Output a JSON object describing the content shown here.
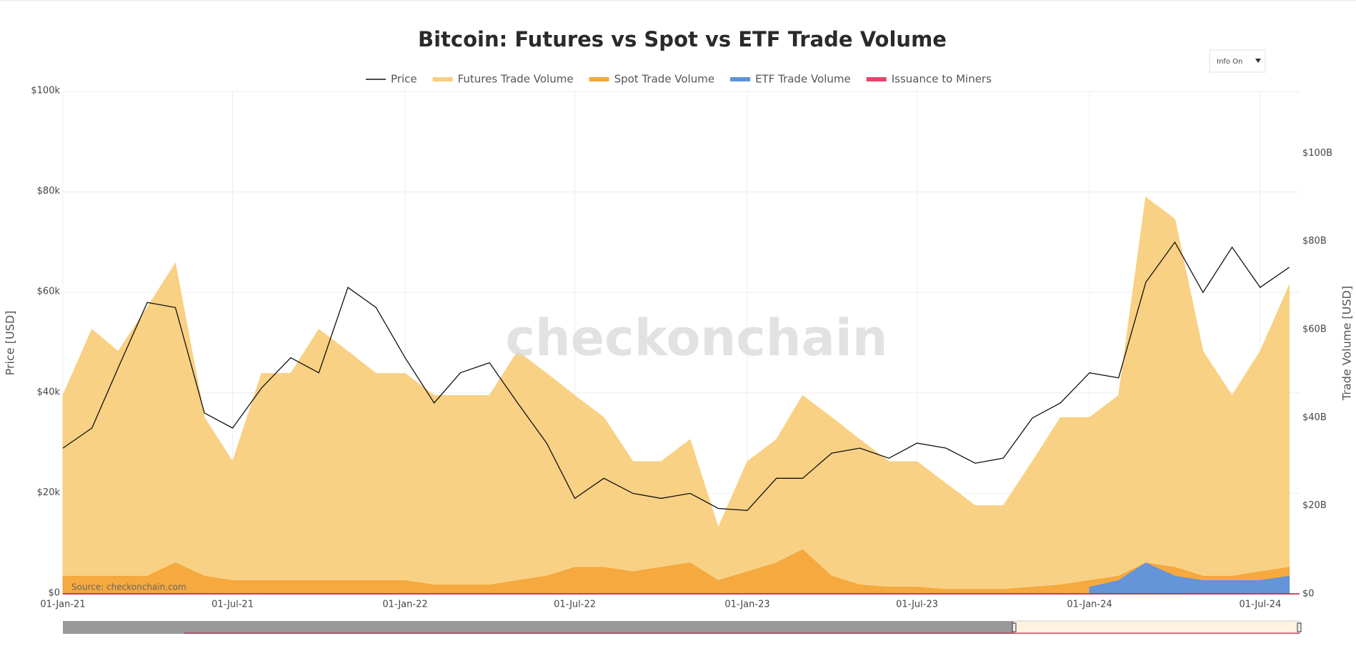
{
  "chart_data": {
    "type": "area",
    "title": "Bitcoin: Futures vs Spot vs ETF Trade Volume",
    "watermark": "checkonchain",
    "source": "Source: checkonchain.com",
    "info_button": "Info On",
    "y_label": "Price [USD]",
    "y2_label": "Trade Volume [USD]",
    "grid": true,
    "x": [
      "2021-01-01",
      "2021-02-01",
      "2021-03-01",
      "2021-04-01",
      "2021-05-01",
      "2021-06-01",
      "2021-07-01",
      "2021-08-01",
      "2021-09-01",
      "2021-10-01",
      "2021-11-01",
      "2021-12-01",
      "2022-01-01",
      "2022-02-01",
      "2022-03-01",
      "2022-04-01",
      "2022-05-01",
      "2022-06-01",
      "2022-07-01",
      "2022-08-01",
      "2022-09-01",
      "2022-10-01",
      "2022-11-01",
      "2022-12-01",
      "2023-01-01",
      "2023-02-01",
      "2023-03-01",
      "2023-04-01",
      "2023-05-01",
      "2023-06-01",
      "2023-07-01",
      "2023-08-01",
      "2023-09-01",
      "2023-10-01",
      "2023-11-01",
      "2023-12-01",
      "2024-01-01",
      "2024-02-01",
      "2024-03-01",
      "2024-04-01",
      "2024-05-01",
      "2024-06-01",
      "2024-07-01",
      "2024-08-01"
    ],
    "xlim": [
      "2021-01-01",
      "2024-08-12"
    ],
    "xticks": [
      {
        "value": "2021-01-01",
        "label": "01-Jan-21"
      },
      {
        "value": "2021-07-01",
        "label": "01-Jul-21"
      },
      {
        "value": "2022-01-01",
        "label": "01-Jan-22"
      },
      {
        "value": "2022-07-01",
        "label": "01-Jul-22"
      },
      {
        "value": "2023-01-01",
        "label": "01-Jan-23"
      },
      {
        "value": "2023-07-01",
        "label": "01-Jul-23"
      },
      {
        "value": "2024-01-01",
        "label": "01-Jan-24"
      },
      {
        "value": "2024-07-01",
        "label": "01-Jul-24"
      }
    ],
    "ylim": [
      0,
      100000
    ],
    "yticks": [
      {
        "value": 0,
        "label": "$0"
      },
      {
        "value": 20000,
        "label": "$20k"
      },
      {
        "value": 40000,
        "label": "$40k"
      },
      {
        "value": 60000,
        "label": "$60k"
      },
      {
        "value": 80000,
        "label": "$80k"
      },
      {
        "value": 100000,
        "label": "$100k"
      }
    ],
    "y2lim": [
      0,
      114000000000
    ],
    "y2ticks": [
      {
        "value": 0,
        "label": "$0"
      },
      {
        "value": 20000000000,
        "label": "$20B"
      },
      {
        "value": 40000000000,
        "label": "$40B"
      },
      {
        "value": 60000000000,
        "label": "$60B"
      },
      {
        "value": 80000000000,
        "label": "$80B"
      },
      {
        "value": 100000000000,
        "label": "$100B"
      }
    ],
    "series": [
      {
        "name": "Price",
        "type": "line",
        "color": "#111111",
        "values": [
          29000,
          33000,
          45000,
          58000,
          57000,
          36000,
          33000,
          41000,
          47000,
          44000,
          61000,
          57000,
          47000,
          38000,
          44000,
          46000,
          38000,
          30000,
          19000,
          23000,
          20000,
          19000,
          20000,
          17000,
          16600,
          23000,
          23000,
          28000,
          29000,
          27000,
          30000,
          29000,
          26000,
          27000,
          35000,
          38000,
          44000,
          43000,
          62000,
          70000,
          60000,
          69000,
          61000,
          65000
        ]
      },
      {
        "name": "Futures Trade Volume",
        "type": "area",
        "axis": "y2",
        "color": "#f9cf7d",
        "values": [
          45000000000,
          60000000000,
          55000000000,
          65000000000,
          75000000000,
          40000000000,
          30000000000,
          50000000000,
          50000000000,
          60000000000,
          55000000000,
          50000000000,
          50000000000,
          45000000000,
          45000000000,
          45000000000,
          55000000000,
          50000000000,
          45000000000,
          40000000000,
          30000000000,
          30000000000,
          35000000000,
          15000000000,
          30000000000,
          35000000000,
          45000000000,
          40000000000,
          35000000000,
          30000000000,
          30000000000,
          25000000000,
          20000000000,
          20000000000,
          30000000000,
          40000000000,
          40000000000,
          45000000000,
          90000000000,
          85000000000,
          55000000000,
          45000000000,
          55000000000,
          70000000000
        ]
      },
      {
        "name": "Spot Trade Volume",
        "type": "area",
        "axis": "y2",
        "color": "#f4a63a",
        "values": [
          4000000000,
          4000000000,
          4000000000,
          4000000000,
          7000000000,
          4000000000,
          3000000000,
          3000000000,
          3000000000,
          3000000000,
          3000000000,
          3000000000,
          3000000000,
          2000000000,
          2000000000,
          2000000000,
          3000000000,
          4000000000,
          6000000000,
          6000000000,
          5000000000,
          6000000000,
          7000000000,
          3000000000,
          5000000000,
          7000000000,
          10000000000,
          4000000000,
          2000000000,
          1500000000,
          1500000000,
          1000000000,
          1000000000,
          1000000000,
          1500000000,
          2000000000,
          3000000000,
          4000000000,
          7000000000,
          6000000000,
          4000000000,
          4000000000,
          5000000000,
          6000000000
        ]
      },
      {
        "name": "ETF Trade Volume",
        "type": "area",
        "axis": "y2",
        "color": "#5b93e0",
        "values": [
          null,
          null,
          null,
          null,
          null,
          null,
          null,
          null,
          null,
          null,
          null,
          null,
          null,
          null,
          null,
          null,
          null,
          null,
          null,
          null,
          null,
          null,
          null,
          null,
          null,
          null,
          null,
          null,
          null,
          null,
          null,
          null,
          null,
          null,
          null,
          null,
          1500000000,
          3000000000,
          7000000000,
          4000000000,
          3000000000,
          3000000000,
          3000000000,
          4000000000
        ]
      },
      {
        "name": "Issuance to Miners",
        "type": "area",
        "axis": "y2",
        "color": "#e8436a",
        "values": [
          40000000,
          40000000,
          45000000,
          50000000,
          50000000,
          30000000,
          30000000,
          40000000,
          40000000,
          45000000,
          50000000,
          45000000,
          35000000,
          30000000,
          30000000,
          30000000,
          25000000,
          20000000,
          18000000,
          18000000,
          18000000,
          18000000,
          16000000,
          15000000,
          18000000,
          20000000,
          22000000,
          25000000,
          25000000,
          24000000,
          25000000,
          23000000,
          22000000,
          24000000,
          30000000,
          38000000,
          40000000,
          45000000,
          60000000,
          40000000,
          30000000,
          30000000,
          28000000,
          28000000
        ]
      }
    ]
  }
}
